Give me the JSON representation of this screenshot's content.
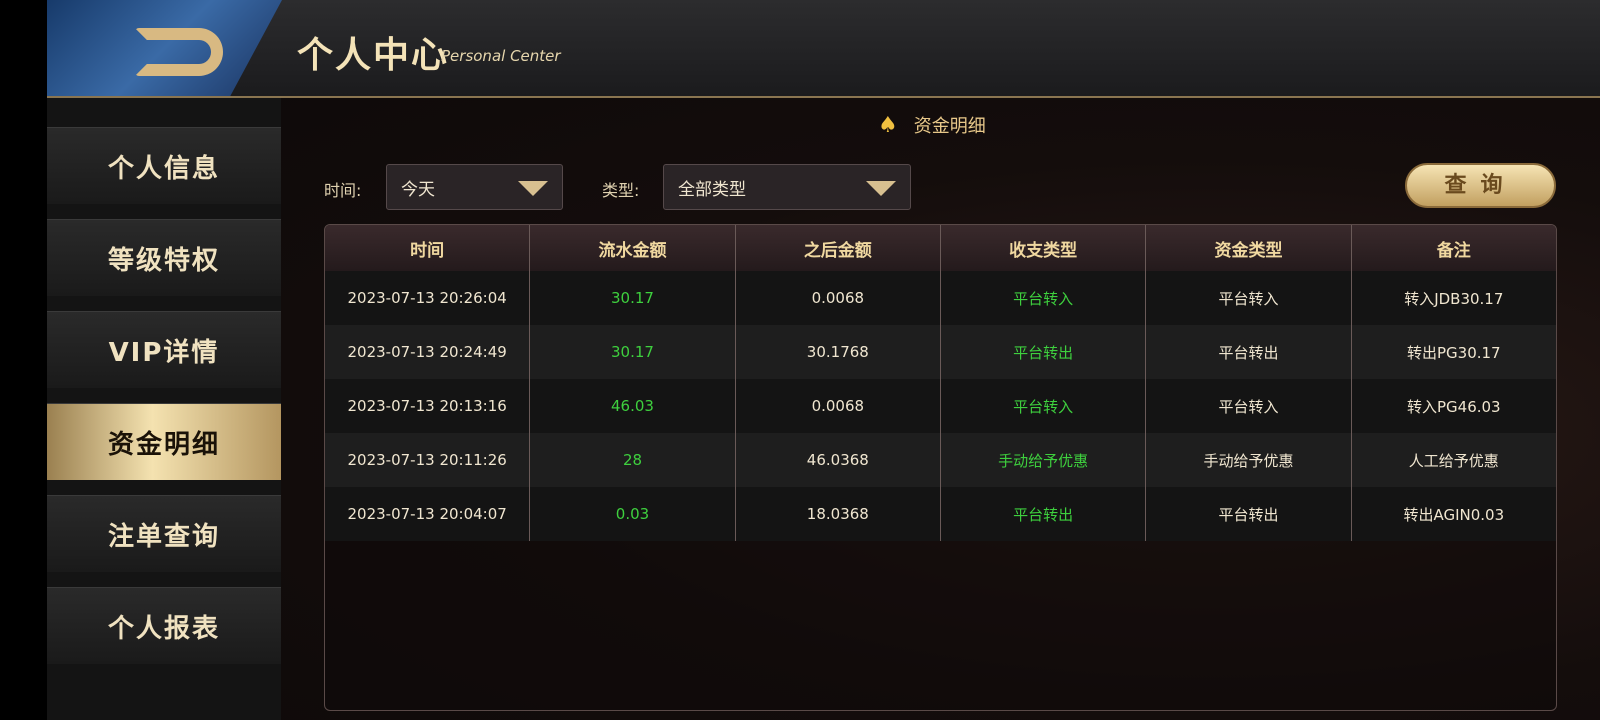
{
  "header": {
    "title": "个人中心",
    "subtitle": "Personal Center"
  },
  "sidebar": {
    "items": [
      {
        "label": "个人信息"
      },
      {
        "label": "等级特权"
      },
      {
        "label": "VIP详情"
      },
      {
        "label": "资金明细",
        "active": true
      },
      {
        "label": "注单查询"
      },
      {
        "label": "个人报表"
      }
    ]
  },
  "section": {
    "icon": "spade-icon",
    "title": "资金明细"
  },
  "filters": {
    "time_label": "时间:",
    "time_value": "今天",
    "type_label": "类型:",
    "type_value": "全部类型",
    "query_label": "查询"
  },
  "table": {
    "columns": [
      "时间",
      "流水金额",
      "之后金额",
      "收支类型",
      "资金类型",
      "备注"
    ],
    "rows": [
      [
        "2023-07-13 20:26:04",
        "30.17",
        "0.0068",
        "平台转入",
        "平台转入",
        "转入JDB30.17"
      ],
      [
        "2023-07-13 20:24:49",
        "30.17",
        "30.1768",
        "平台转出",
        "平台转出",
        "转出PG30.17"
      ],
      [
        "2023-07-13 20:13:16",
        "46.03",
        "0.0068",
        "平台转入",
        "平台转入",
        "转入PG46.03"
      ],
      [
        "2023-07-13 20:11:26",
        "28",
        "46.0368",
        "手动给予优惠",
        "手动给予优惠",
        "人工给予优惠"
      ],
      [
        "2023-07-13 20:04:07",
        "0.03",
        "18.0368",
        "平台转出",
        "平台转出",
        "转出AGIN0.03"
      ]
    ]
  },
  "colors": {
    "accent": "#e8c88a",
    "positive": "#3ed03e"
  }
}
